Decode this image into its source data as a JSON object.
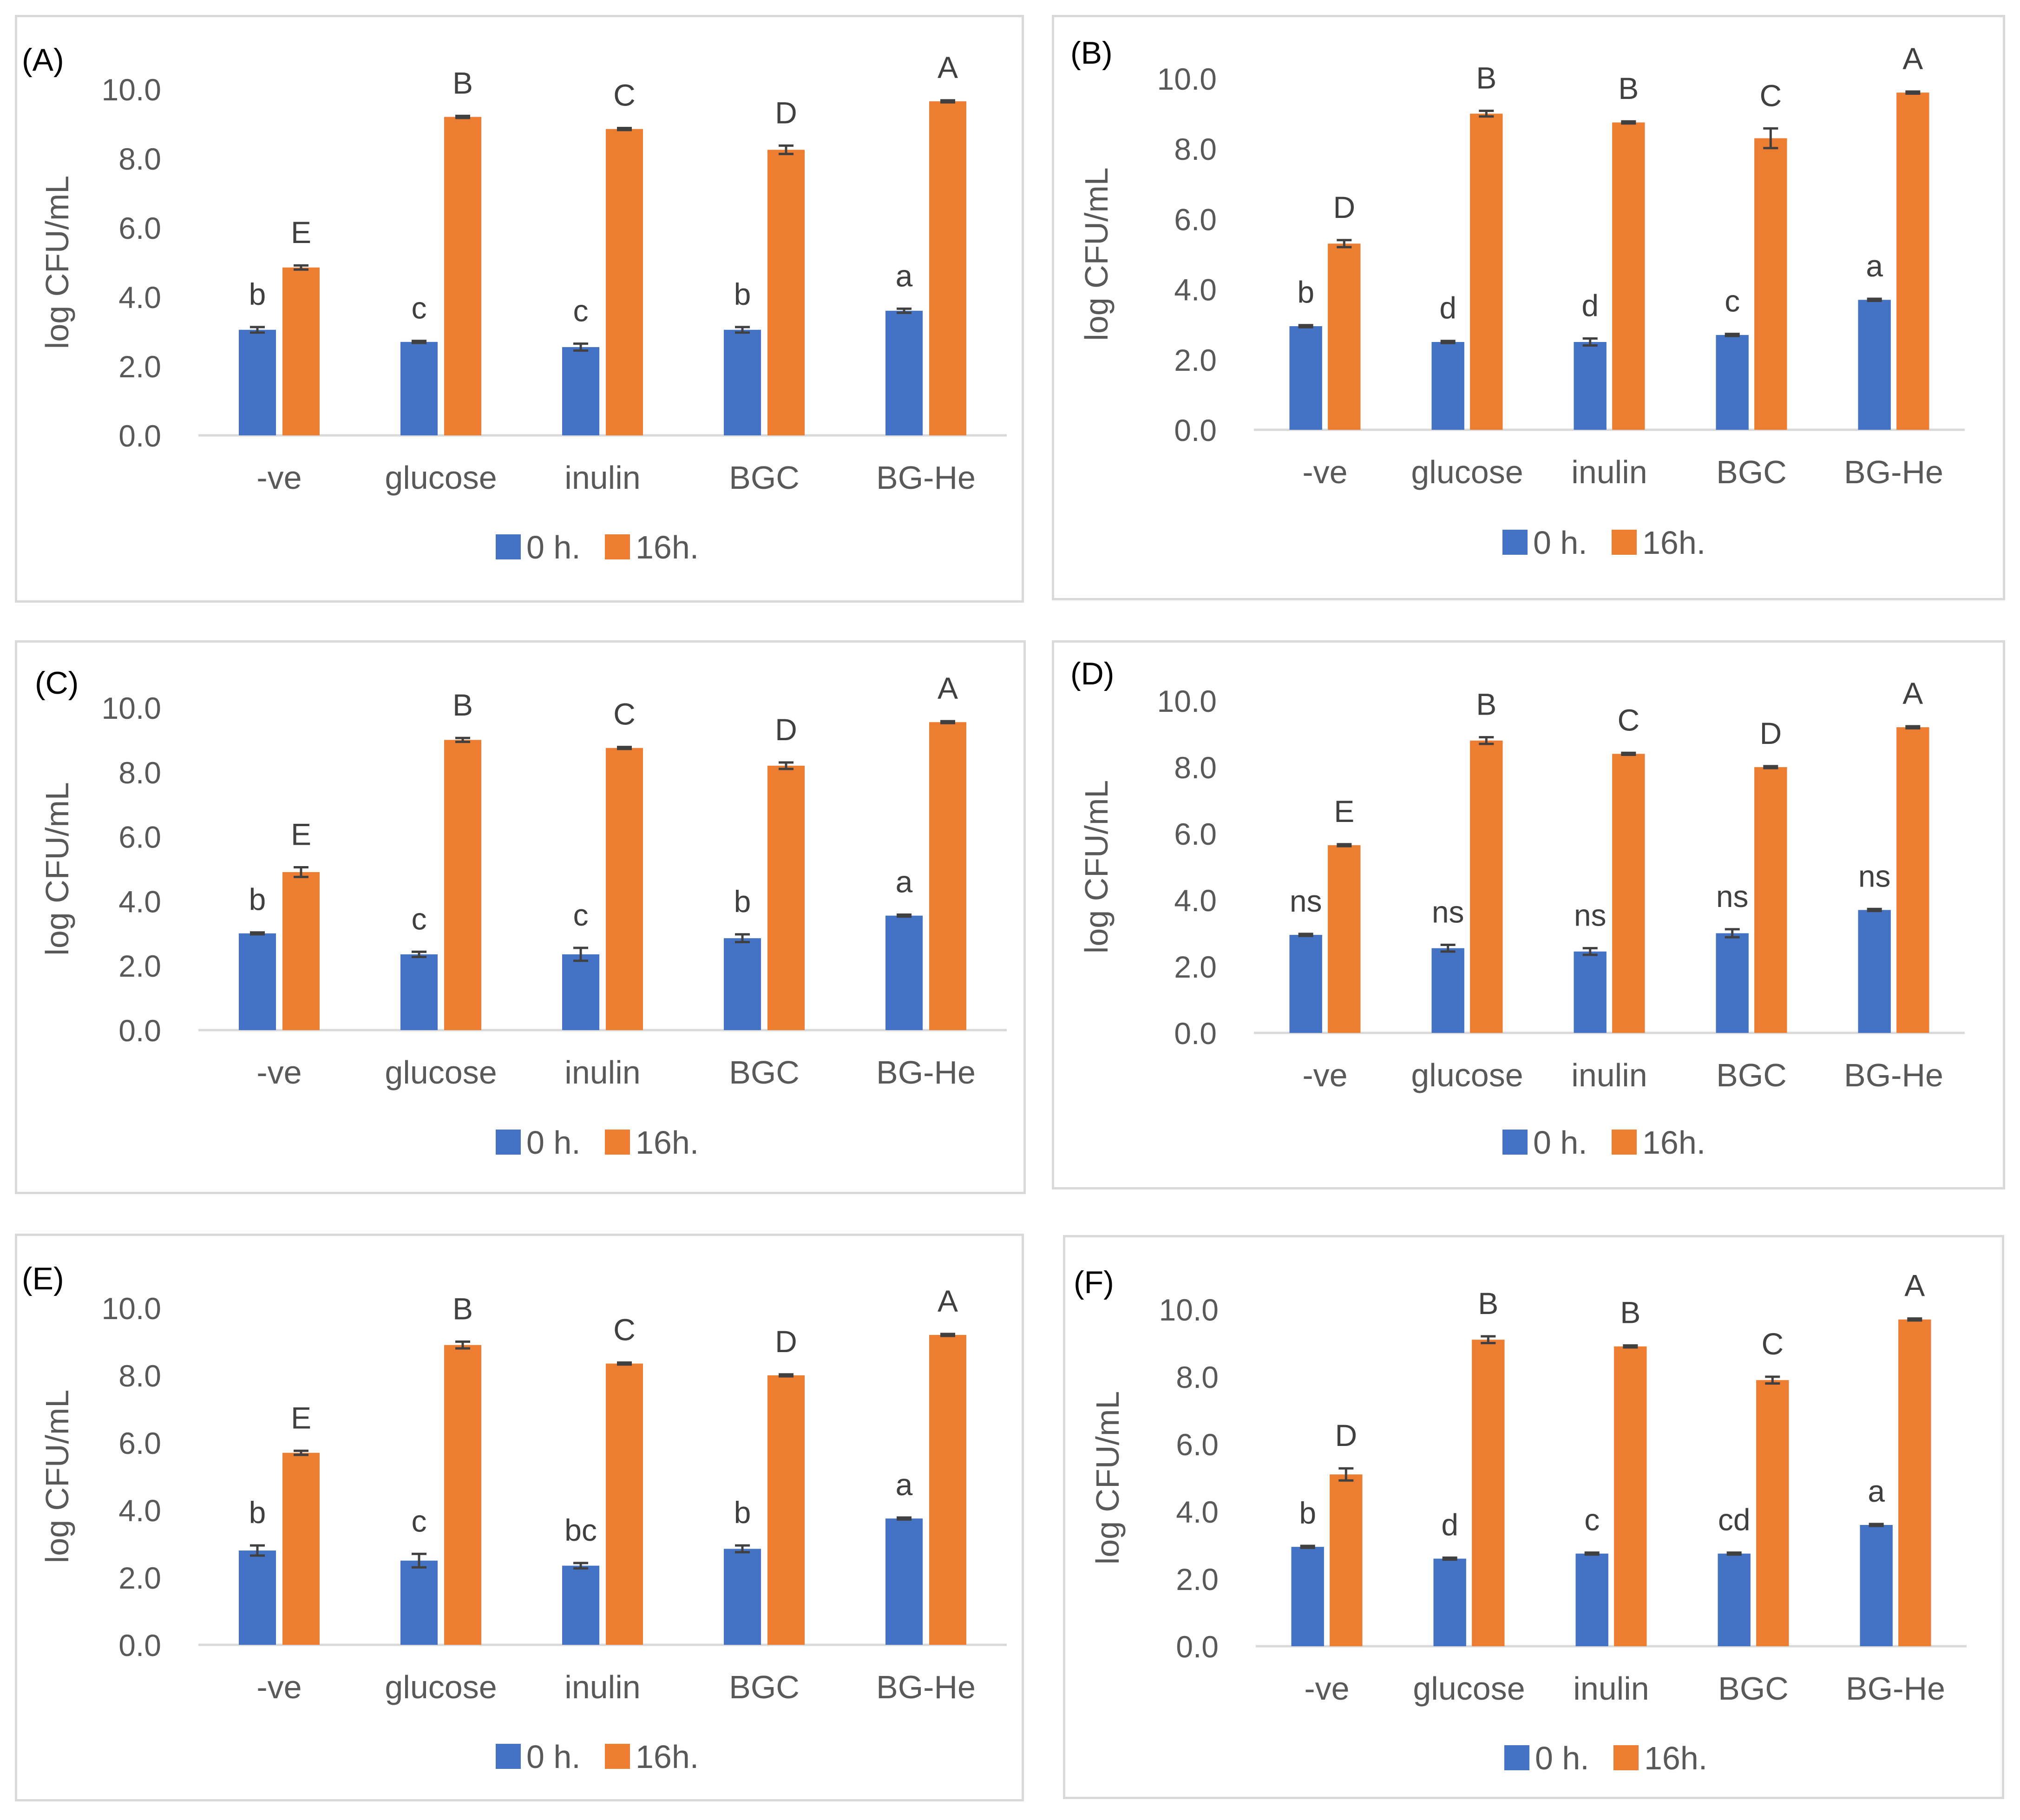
{
  "figure": {
    "colors": {
      "series0": "#4472c4",
      "series1": "#ed7d31",
      "axis": "#d9d9d9",
      "text": "#595959",
      "error": "#404040"
    }
  },
  "chart_data": [
    {
      "type": "bar",
      "label": "(A)",
      "categories": [
        "-ve",
        "glucose",
        "inulin",
        "BGC",
        "BG-He"
      ],
      "ylabel": "log CFU/mL",
      "ylim": [
        0,
        10
      ],
      "ytick_labels": [
        "0.0",
        "2.0",
        "4.0",
        "6.0",
        "8.0",
        "10.0"
      ],
      "legend": [
        "0 h.",
        "16h."
      ],
      "legend_position": "bottom",
      "series": [
        {
          "name": "0 h.",
          "values": [
            3.05,
            2.7,
            2.55,
            3.05,
            3.6
          ],
          "errors": [
            0.08,
            0.03,
            0.1,
            0.08,
            0.06
          ],
          "letters": [
            "b",
            "c",
            "c",
            "b",
            "a"
          ]
        },
        {
          "name": "16h.",
          "values": [
            4.85,
            9.2,
            8.85,
            8.25,
            9.65
          ],
          "errors": [
            0.06,
            0.03,
            0.03,
            0.12,
            0.03
          ],
          "letters": [
            "E",
            "B",
            "C",
            "D",
            "A"
          ]
        }
      ]
    },
    {
      "type": "bar",
      "label": "(B)",
      "categories": [
        "-ve",
        "glucose",
        "inulin",
        "BGC",
        "BG-He"
      ],
      "ylabel": "log CFU/mL",
      "ylim": [
        0,
        10
      ],
      "ytick_labels": [
        "0.0",
        "2.0",
        "4.0",
        "6.0",
        "8.0",
        "10.0"
      ],
      "legend": [
        "0 h.",
        "16h."
      ],
      "legend_position": "bottom",
      "series": [
        {
          "name": "0 h.",
          "values": [
            2.95,
            2.5,
            2.5,
            2.7,
            3.7
          ],
          "errors": [
            0.03,
            0.03,
            0.1,
            0.03,
            0.03
          ],
          "letters": [
            "b",
            "d",
            "d",
            "c",
            "a"
          ]
        },
        {
          "name": "16h.",
          "values": [
            5.3,
            9.0,
            8.75,
            8.3,
            9.6
          ],
          "errors": [
            0.1,
            0.08,
            0.03,
            0.28,
            0.03
          ],
          "letters": [
            "D",
            "B",
            "B",
            "C",
            "A"
          ]
        }
      ]
    },
    {
      "type": "bar",
      "label": "(C)",
      "categories": [
        "-ve",
        "glucose",
        "inulin",
        "BGC",
        "BG-He"
      ],
      "ylabel": "log CFU/mL",
      "ylim": [
        0,
        10
      ],
      "ytick_labels": [
        "0.0",
        "2.0",
        "4.0",
        "6.0",
        "8.0",
        "10.0"
      ],
      "legend": [
        "0 h.",
        "16h."
      ],
      "legend_position": "bottom",
      "series": [
        {
          "name": "0 h.",
          "values": [
            3.0,
            2.35,
            2.35,
            2.85,
            3.55
          ],
          "errors": [
            0.03,
            0.08,
            0.2,
            0.12,
            0.03
          ],
          "letters": [
            "b",
            "c",
            "c",
            "b",
            "a"
          ]
        },
        {
          "name": "16h.",
          "values": [
            4.9,
            9.0,
            8.75,
            8.2,
            9.55
          ],
          "errors": [
            0.15,
            0.06,
            0.03,
            0.1,
            0.03
          ],
          "letters": [
            "E",
            "B",
            "C",
            "D",
            "A"
          ]
        }
      ]
    },
    {
      "type": "bar",
      "label": "(D)",
      "categories": [
        "-ve",
        "glucose",
        "inulin",
        "BGC",
        "BG-He"
      ],
      "ylabel": "log CFU/mL",
      "ylim": [
        0,
        10
      ],
      "ytick_labels": [
        "0.0",
        "2.0",
        "4.0",
        "6.0",
        "8.0",
        "10.0"
      ],
      "legend": [
        "0 h.",
        "16h."
      ],
      "legend_position": "bottom",
      "series": [
        {
          "name": "0 h.",
          "values": [
            2.95,
            2.55,
            2.45,
            3.0,
            3.7
          ],
          "errors": [
            0.03,
            0.1,
            0.1,
            0.12,
            0.03
          ],
          "letters": [
            "ns",
            "ns",
            "ns",
            "ns",
            "ns"
          ]
        },
        {
          "name": "16h.",
          "values": [
            5.65,
            8.8,
            8.4,
            8.0,
            9.2
          ],
          "errors": [
            0.03,
            0.1,
            0.03,
            0.03,
            0.03
          ],
          "letters": [
            "E",
            "B",
            "C",
            "D",
            "A"
          ]
        }
      ]
    },
    {
      "type": "bar",
      "label": "(E)",
      "categories": [
        "-ve",
        "glucose",
        "inulin",
        "BGC",
        "BG-He"
      ],
      "ylabel": "log CFU/mL",
      "ylim": [
        0,
        10
      ],
      "ytick_labels": [
        "0.0",
        "2.0",
        "4.0",
        "6.0",
        "8.0",
        "10.0"
      ],
      "legend": [
        "0 h.",
        "16h."
      ],
      "legend_position": "bottom",
      "series": [
        {
          "name": "0 h.",
          "values": [
            2.8,
            2.5,
            2.35,
            2.85,
            3.75
          ],
          "errors": [
            0.15,
            0.2,
            0.08,
            0.1,
            0.03
          ],
          "letters": [
            "b",
            "c",
            "bc",
            "b",
            "a"
          ]
        },
        {
          "name": "16h.",
          "values": [
            5.7,
            8.9,
            8.35,
            8.0,
            9.2
          ],
          "errors": [
            0.06,
            0.1,
            0.03,
            0.03,
            0.03
          ],
          "letters": [
            "E",
            "B",
            "C",
            "D",
            "A"
          ]
        }
      ]
    },
    {
      "type": "bar",
      "label": "(F)",
      "categories": [
        "-ve",
        "glucose",
        "inulin",
        "BGC",
        "BG-He"
      ],
      "ylabel": "log CFU/mL",
      "ylim": [
        0,
        10
      ],
      "ytick_labels": [
        "0.0",
        "2.0",
        "4.0",
        "6.0",
        "8.0",
        "10.0"
      ],
      "legend": [
        "0 h.",
        "16h."
      ],
      "legend_position": "bottom",
      "series": [
        {
          "name": "0 h.",
          "values": [
            2.95,
            2.6,
            2.75,
            2.75,
            3.6
          ],
          "errors": [
            0.03,
            0.03,
            0.03,
            0.03,
            0.03
          ],
          "letters": [
            "b",
            "d",
            "c",
            "cd",
            "a"
          ]
        },
        {
          "name": "16h.",
          "values": [
            5.1,
            9.1,
            8.9,
            7.9,
            9.7
          ],
          "errors": [
            0.18,
            0.1,
            0.03,
            0.1,
            0.03
          ],
          "letters": [
            "D",
            "B",
            "B",
            "C",
            "A"
          ]
        }
      ]
    }
  ]
}
